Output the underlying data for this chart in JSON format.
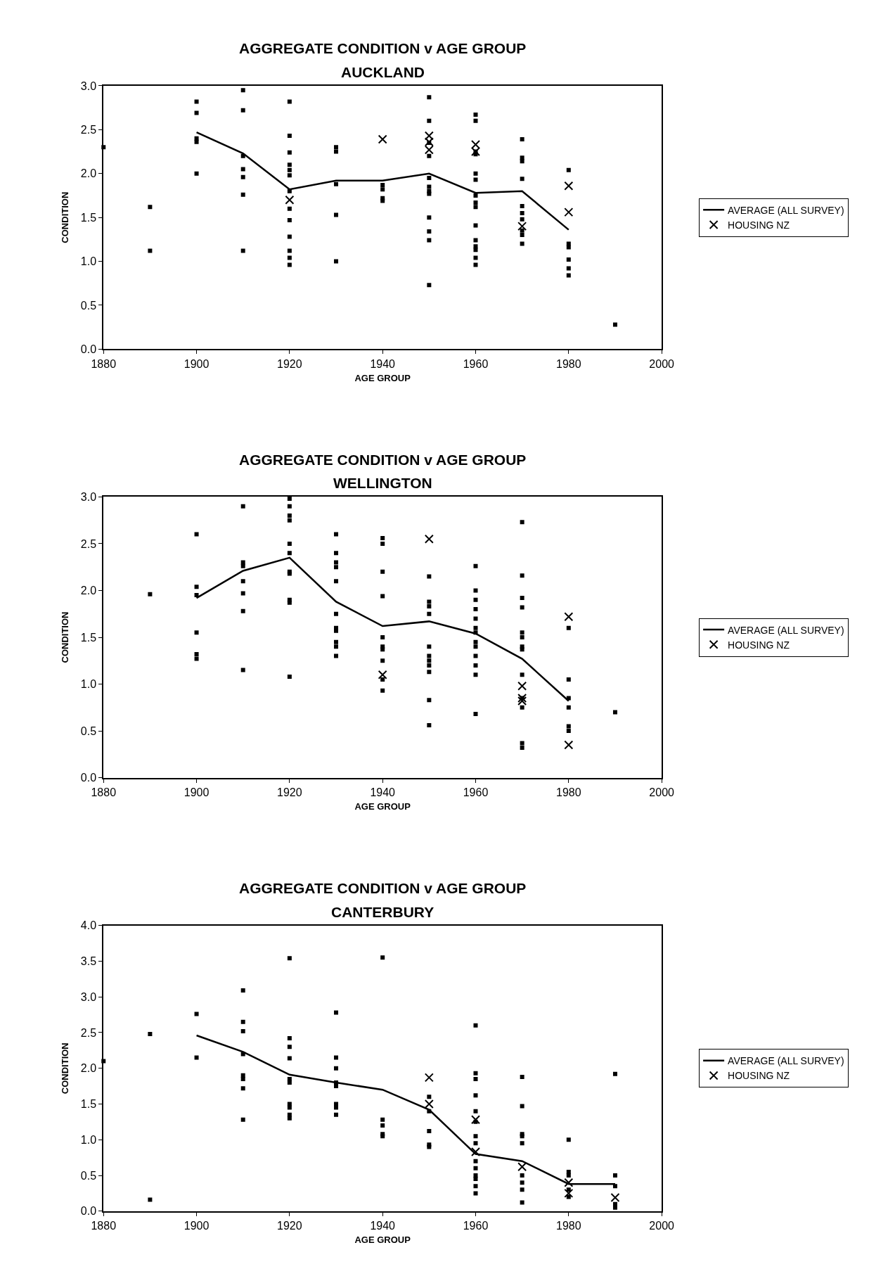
{
  "chart_data": [
    {
      "type": "scatter",
      "title": "AGGREGATE CONDITION v AGE GROUP",
      "subtitle": "AUCKLAND",
      "xlabel": "AGE GROUP",
      "ylabel": "CONDITION",
      "legend": "right",
      "grid": false,
      "xlim": [
        1880,
        2000
      ],
      "xticks": [
        1880,
        1900,
        1920,
        1940,
        1960,
        1980,
        2000
      ],
      "ylim": [
        0,
        3
      ],
      "yticks": [
        {
          "value": 0,
          "label": "0.0"
        },
        {
          "value": 0.5,
          "label": "0.5"
        },
        {
          "value": 1,
          "label": "1.0"
        },
        {
          "value": 1.5,
          "label": "1.5"
        },
        {
          "value": 2,
          "label": "2.0"
        },
        {
          "value": 2.5,
          "label": "2.5"
        },
        {
          "value": 3,
          "label": "3.0"
        }
      ],
      "series": [
        {
          "marker": "square",
          "color": "#000000",
          "x": [
            1880,
            1890,
            1890,
            1900,
            1900,
            1900,
            1900,
            1900,
            1910,
            1910,
            1910,
            1910,
            1910,
            1910,
            1910,
            1920,
            1920,
            1920,
            1920,
            1920,
            1920,
            1920,
            1920,
            1920,
            1920,
            1920,
            1920,
            1920,
            1930,
            1930,
            1930,
            1930,
            1930,
            1940,
            1940,
            1940,
            1940,
            1950,
            1950,
            1950,
            1950,
            1950,
            1950,
            1950,
            1950,
            1950,
            1950,
            1950,
            1950,
            1960,
            1960,
            1960,
            1960,
            1960,
            1960,
            1960,
            1960,
            1960,
            1960,
            1960,
            1960,
            1960,
            1960,
            1960,
            1970,
            1970,
            1970,
            1970,
            1970,
            1970,
            1970,
            1970,
            1970,
            1970,
            1980,
            1980,
            1980,
            1980,
            1980,
            1980,
            1990
          ],
          "values": [
            2.3,
            1.62,
            1.12,
            2.82,
            2.69,
            2.4,
            2.36,
            2.0,
            2.95,
            2.72,
            2.2,
            2.05,
            1.96,
            1.76,
            1.12,
            2.82,
            2.43,
            2.24,
            2.1,
            2.04,
            1.98,
            1.8,
            1.6,
            1.47,
            1.28,
            1.12,
            1.04,
            0.96,
            2.3,
            2.25,
            1.88,
            1.53,
            1.0,
            1.87,
            1.82,
            1.72,
            1.69,
            2.87,
            2.6,
            2.35,
            2.2,
            1.95,
            1.85,
            1.8,
            1.77,
            1.5,
            1.34,
            1.24,
            0.73,
            2.67,
            2.6,
            2.25,
            2.22,
            2.0,
            1.93,
            1.75,
            1.67,
            1.62,
            1.41,
            1.24,
            1.17,
            1.13,
            1.04,
            0.96,
            2.39,
            2.18,
            2.14,
            1.94,
            1.63,
            1.55,
            1.48,
            1.35,
            1.3,
            1.2,
            2.04,
            1.2,
            1.16,
            1.02,
            0.92,
            0.84,
            0.28
          ]
        },
        {
          "type": "line",
          "name": "AVERAGE (ALL SURVEY)",
          "marker": "none",
          "line_style": "solid",
          "color": "#000000",
          "x": [
            1900,
            1910,
            1920,
            1930,
            1940,
            1950,
            1960,
            1970,
            1980
          ],
          "values": [
            2.47,
            2.23,
            1.82,
            1.92,
            1.92,
            2.0,
            1.78,
            1.8,
            1.36
          ]
        },
        {
          "name": "HOUSING NZ",
          "marker": "cross",
          "color": "#000000",
          "x": [
            1920,
            1940,
            1950,
            1950,
            1950,
            1960,
            1960,
            1970,
            1980,
            1980
          ],
          "values": [
            1.7,
            2.39,
            2.43,
            2.36,
            2.27,
            2.33,
            2.25,
            1.4,
            1.86,
            1.56
          ]
        }
      ]
    },
    {
      "type": "scatter",
      "title": "AGGREGATE CONDITION v AGE GROUP",
      "subtitle": "WELLINGTON",
      "xlabel": "AGE GROUP",
      "ylabel": "CONDITION",
      "legend": "right",
      "grid": false,
      "xlim": [
        1880,
        2000
      ],
      "xticks": [
        1880,
        1900,
        1920,
        1940,
        1960,
        1980,
        2000
      ],
      "ylim": [
        0,
        3
      ],
      "yticks": [
        {
          "value": 0,
          "label": "0.0"
        },
        {
          "value": 0.5,
          "label": "0.5"
        },
        {
          "value": 1,
          "label": "1.0"
        },
        {
          "value": 1.5,
          "label": "1.5"
        },
        {
          "value": 2,
          "label": "2.0"
        },
        {
          "value": 2.5,
          "label": "2.5"
        },
        {
          "value": 3,
          "label": "3.0"
        }
      ],
      "series": [
        {
          "marker": "square",
          "color": "#000000",
          "x": [
            1890,
            1900,
            1900,
            1900,
            1900,
            1900,
            1900,
            1910,
            1910,
            1910,
            1910,
            1910,
            1910,
            1910,
            1920,
            1920,
            1920,
            1920,
            1920,
            1920,
            1920,
            1920,
            1920,
            1920,
            1920,
            1930,
            1930,
            1930,
            1930,
            1930,
            1930,
            1930,
            1930,
            1930,
            1930,
            1930,
            1940,
            1940,
            1940,
            1940,
            1940,
            1940,
            1940,
            1940,
            1940,
            1940,
            1950,
            1950,
            1950,
            1950,
            1950,
            1950,
            1950,
            1950,
            1950,
            1950,
            1950,
            1960,
            1960,
            1960,
            1960,
            1960,
            1960,
            1960,
            1960,
            1960,
            1960,
            1960,
            1960,
            1960,
            1970,
            1970,
            1970,
            1970,
            1970,
            1970,
            1970,
            1970,
            1970,
            1970,
            1970,
            1970,
            1970,
            1980,
            1980,
            1980,
            1980,
            1980,
            1980,
            1990
          ],
          "values": [
            1.96,
            2.6,
            2.04,
            1.95,
            1.55,
            1.32,
            1.27,
            2.9,
            2.3,
            2.26,
            2.1,
            1.97,
            1.78,
            1.15,
            2.98,
            2.9,
            2.8,
            2.75,
            2.5,
            2.4,
            2.2,
            2.18,
            1.9,
            1.87,
            1.08,
            2.6,
            2.4,
            2.3,
            2.25,
            2.1,
            1.75,
            1.6,
            1.57,
            1.45,
            1.4,
            1.3,
            2.56,
            2.5,
            2.2,
            1.94,
            1.5,
            1.4,
            1.37,
            1.25,
            1.05,
            0.93,
            2.15,
            1.88,
            1.83,
            1.75,
            1.4,
            1.3,
            1.25,
            1.2,
            1.13,
            0.83,
            0.56,
            2.26,
            2.0,
            1.9,
            1.8,
            1.7,
            1.6,
            1.55,
            1.45,
            1.4,
            1.3,
            1.2,
            1.1,
            0.68,
            2.73,
            2.16,
            1.92,
            1.82,
            1.55,
            1.5,
            1.4,
            1.37,
            1.1,
            0.85,
            0.75,
            0.37,
            0.32,
            1.6,
            1.05,
            0.85,
            0.75,
            0.55,
            0.5,
            0.7
          ]
        },
        {
          "type": "line",
          "name": "AVERAGE (ALL SURVEY)",
          "marker": "none",
          "line_style": "solid",
          "color": "#000000",
          "x": [
            1900,
            1910,
            1920,
            1930,
            1940,
            1950,
            1960,
            1970,
            1980
          ],
          "values": [
            1.92,
            2.21,
            2.35,
            1.88,
            1.62,
            1.67,
            1.54,
            1.27,
            0.82
          ]
        },
        {
          "name": "HOUSING NZ",
          "marker": "cross",
          "color": "#000000",
          "x": [
            1940,
            1950,
            1970,
            1970,
            1970,
            1980,
            1980
          ],
          "values": [
            1.1,
            2.55,
            0.98,
            0.85,
            0.82,
            1.72,
            0.35
          ]
        }
      ]
    },
    {
      "type": "scatter",
      "title": "AGGREGATE CONDITION v AGE GROUP",
      "subtitle": "CANTERBURY",
      "xlabel": "AGE GROUP",
      "ylabel": "CONDITION",
      "legend": "right",
      "grid": false,
      "xlim": [
        1880,
        2000
      ],
      "xticks": [
        1880,
        1900,
        1920,
        1940,
        1960,
        1980,
        2000
      ],
      "ylim": [
        0,
        4
      ],
      "yticks": [
        {
          "value": 0,
          "label": "0.0"
        },
        {
          "value": 0.5,
          "label": "0.5"
        },
        {
          "value": 1,
          "label": "1.0"
        },
        {
          "value": 1.5,
          "label": "1.5"
        },
        {
          "value": 2,
          "label": "2.0"
        },
        {
          "value": 2.5,
          "label": "2.5"
        },
        {
          "value": 3,
          "label": "3.0"
        },
        {
          "value": 3.5,
          "label": "3.5"
        },
        {
          "value": 4,
          "label": "4.0"
        }
      ],
      "series": [
        {
          "marker": "square",
          "color": "#000000",
          "x": [
            1880,
            1890,
            1890,
            1900,
            1900,
            1910,
            1910,
            1910,
            1910,
            1910,
            1910,
            1910,
            1910,
            1920,
            1920,
            1920,
            1920,
            1920,
            1920,
            1920,
            1920,
            1920,
            1920,
            1930,
            1930,
            1930,
            1930,
            1930,
            1930,
            1930,
            1930,
            1940,
            1940,
            1940,
            1940,
            1940,
            1950,
            1950,
            1950,
            1950,
            1950,
            1960,
            1960,
            1960,
            1960,
            1960,
            1960,
            1960,
            1960,
            1960,
            1960,
            1960,
            1960,
            1960,
            1960,
            1970,
            1970,
            1970,
            1970,
            1970,
            1970,
            1970,
            1970,
            1970,
            1980,
            1980,
            1980,
            1980,
            1980,
            1990,
            1990,
            1990,
            1990,
            1990
          ],
          "values": [
            2.1,
            2.48,
            0.16,
            2.76,
            2.15,
            3.09,
            2.65,
            2.52,
            2.2,
            1.9,
            1.85,
            1.72,
            1.28,
            3.54,
            2.42,
            2.3,
            2.14,
            1.85,
            1.8,
            1.5,
            1.45,
            1.35,
            1.3,
            2.78,
            2.15,
            2.0,
            1.8,
            1.75,
            1.5,
            1.45,
            1.35,
            3.55,
            1.28,
            1.2,
            1.08,
            1.05,
            1.6,
            1.4,
            1.12,
            0.93,
            0.9,
            2.6,
            1.93,
            1.85,
            1.62,
            1.4,
            1.25,
            1.05,
            0.95,
            0.7,
            0.6,
            0.5,
            0.45,
            0.35,
            0.25,
            1.88,
            1.47,
            1.08,
            1.05,
            0.95,
            0.5,
            0.4,
            0.3,
            0.12,
            1.0,
            0.55,
            0.5,
            0.3,
            0.2,
            1.92,
            0.5,
            0.35,
            0.1,
            0.05
          ]
        },
        {
          "type": "line",
          "name": "AVERAGE (ALL SURVEY)",
          "marker": "none",
          "line_style": "solid",
          "color": "#000000",
          "x": [
            1900,
            1910,
            1920,
            1930,
            1940,
            1950,
            1960,
            1970,
            1980,
            1990
          ],
          "values": [
            2.46,
            2.23,
            1.91,
            1.8,
            1.7,
            1.42,
            0.8,
            0.7,
            0.38,
            0.38
          ]
        },
        {
          "name": "HOUSING NZ",
          "marker": "cross",
          "color": "#000000",
          "x": [
            1950,
            1950,
            1960,
            1960,
            1970,
            1980,
            1980,
            1990
          ],
          "values": [
            1.87,
            1.5,
            1.28,
            0.83,
            0.62,
            0.4,
            0.25,
            0.19
          ]
        }
      ]
    }
  ]
}
